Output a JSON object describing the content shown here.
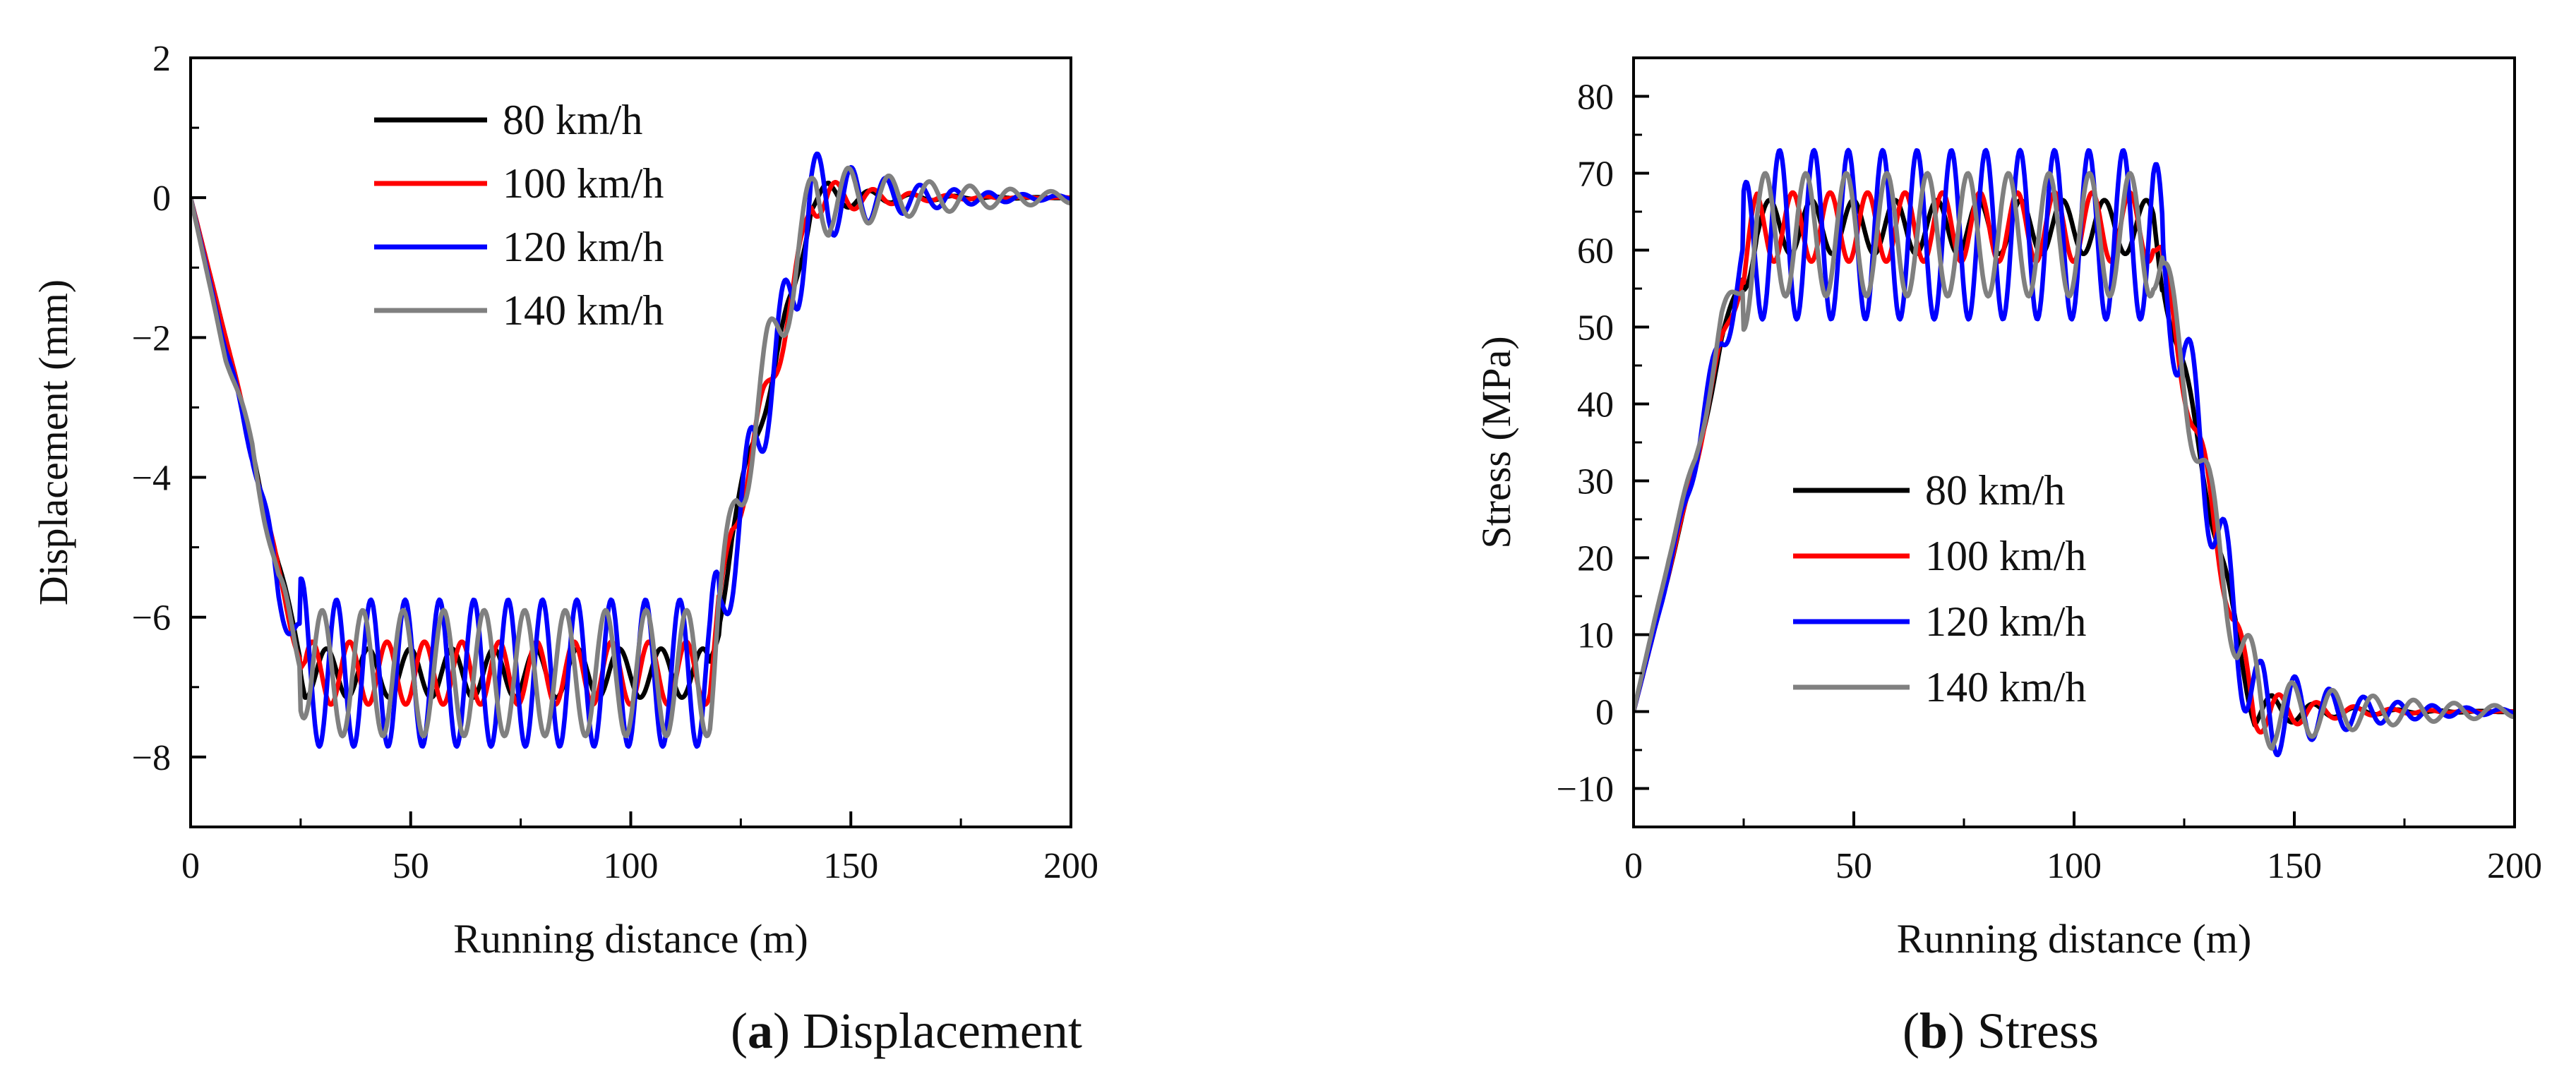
{
  "figure": {
    "panels": [
      {
        "letter": "a",
        "caption_text": "Displacement"
      },
      {
        "letter": "b",
        "caption_text": "Stress"
      }
    ]
  },
  "colors": {
    "80": "#000000",
    "100": "#ff0000",
    "120": "#0000ff",
    "140": "#808080"
  },
  "chart_data": [
    {
      "type": "line",
      "title": "",
      "xlabel": "Running distance (m)",
      "ylabel": "Displacement (mm)",
      "xlim": [
        0,
        200
      ],
      "ylim": [
        -9,
        2
      ],
      "xticks": [
        0,
        50,
        100,
        150,
        200
      ],
      "yticks": [
        2,
        0,
        -2,
        -4,
        -6,
        -8
      ],
      "legend_position": "top-left",
      "series": [
        {
          "name": "80 km/h",
          "color": "#000000",
          "base": [
            [
              0,
              0
            ],
            [
              8,
              -2
            ],
            [
              14,
              -3.6
            ],
            [
              20,
              -5.3
            ],
            [
              26,
              -6.8
            ],
            [
              118,
              -6.8
            ],
            [
              123,
              -4.8
            ],
            [
              130,
              -3
            ],
            [
              137,
              -1.4
            ],
            [
              141,
              0
            ],
            [
              200,
              0
            ]
          ],
          "amp": 0.35,
          "period": 9.5,
          "decay": 14
        },
        {
          "name": "100 km/h",
          "color": "#ff0000",
          "base": [
            [
              0,
              0
            ],
            [
              8,
              -2
            ],
            [
              14,
              -3.6
            ],
            [
              20,
              -5.4
            ],
            [
              26,
              -6.8
            ],
            [
              118,
              -6.8
            ],
            [
              123,
              -4.8
            ],
            [
              130,
              -3
            ],
            [
              137,
              -1.4
            ],
            [
              141,
              0
            ],
            [
              200,
              0
            ]
          ],
          "amp": 0.45,
          "period": 8.5,
          "decay": 14
        },
        {
          "name": "120 km/h",
          "color": "#0000ff",
          "base": [
            [
              0,
              0
            ],
            [
              8,
              -2.2
            ],
            [
              14,
              -3.6
            ],
            [
              20,
              -5.6
            ],
            [
              27,
              -6.8
            ],
            [
              118,
              -6.8
            ],
            [
              124,
              -4.8
            ],
            [
              131,
              -2.8
            ],
            [
              138,
              -1
            ],
            [
              141,
              0
            ],
            [
              200,
              0
            ]
          ],
          "amp": 1.05,
          "period": 7.8,
          "decay": 18
        },
        {
          "name": "140 km/h",
          "color": "#808080",
          "base": [
            [
              0,
              0
            ],
            [
              8,
              -2.3
            ],
            [
              14,
              -3.5
            ],
            [
              20,
              -5.6
            ],
            [
              27,
              -6.8
            ],
            [
              118,
              -6.8
            ],
            [
              124,
              -4.4
            ],
            [
              131,
              -2.4
            ],
            [
              138,
              -0.8
            ],
            [
              142,
              0
            ],
            [
              200,
              0
            ]
          ],
          "amp": 0.9,
          "period": 9.2,
          "decay": 30
        }
      ]
    },
    {
      "type": "line",
      "title": "",
      "xlabel": "Running distance (m)",
      "ylabel": "Stress (MPa)",
      "xlim": [
        0,
        200
      ],
      "ylim": [
        -15,
        85
      ],
      "xticks": [
        0,
        50,
        100,
        150,
        200
      ],
      "yticks": [
        80,
        70,
        60,
        50,
        40,
        30,
        20,
        10,
        0,
        -10
      ],
      "legend_position": "center-left",
      "series": [
        {
          "name": "80 km/h",
          "color": "#000000",
          "base": [
            [
              0,
              0
            ],
            [
              8,
              18
            ],
            [
              14,
              32
            ],
            [
              20,
              48
            ],
            [
              28,
              63
            ],
            [
              118,
              63
            ],
            [
              124,
              46
            ],
            [
              130,
              30
            ],
            [
              136,
              12
            ],
            [
              141,
              0
            ],
            [
              200,
              0
            ]
          ],
          "amp": 3.5,
          "period": 9.5,
          "decay": 14
        },
        {
          "name": "100 km/h",
          "color": "#ff0000",
          "base": [
            [
              0,
              0
            ],
            [
              8,
              18
            ],
            [
              14,
              32
            ],
            [
              20,
              48
            ],
            [
              28,
              63
            ],
            [
              118,
              63
            ],
            [
              124,
              46
            ],
            [
              130,
              30
            ],
            [
              136,
              12
            ],
            [
              141,
              0
            ],
            [
              200,
              0
            ]
          ],
          "amp": 4.5,
          "period": 8.5,
          "decay": 14
        },
        {
          "name": "120 km/h",
          "color": "#0000ff",
          "base": [
            [
              0,
              0
            ],
            [
              8,
              18
            ],
            [
              14,
              33
            ],
            [
              20,
              49
            ],
            [
              28,
              62
            ],
            [
              118,
              62
            ],
            [
              125,
              46
            ],
            [
              131,
              28
            ],
            [
              137,
              10
            ],
            [
              142,
              0
            ],
            [
              200,
              0
            ]
          ],
          "amp": 11,
          "period": 7.8,
          "decay": 18
        },
        {
          "name": "140 km/h",
          "color": "#808080",
          "base": [
            [
              0,
              0
            ],
            [
              8,
              20
            ],
            [
              14,
              33
            ],
            [
              20,
              50
            ],
            [
              28,
              62
            ],
            [
              118,
              62
            ],
            [
              125,
              44
            ],
            [
              131,
              26
            ],
            [
              137,
              10
            ],
            [
              143,
              0
            ],
            [
              200,
              0
            ]
          ],
          "amp": 8,
          "period": 9.2,
          "decay": 30
        }
      ]
    }
  ]
}
